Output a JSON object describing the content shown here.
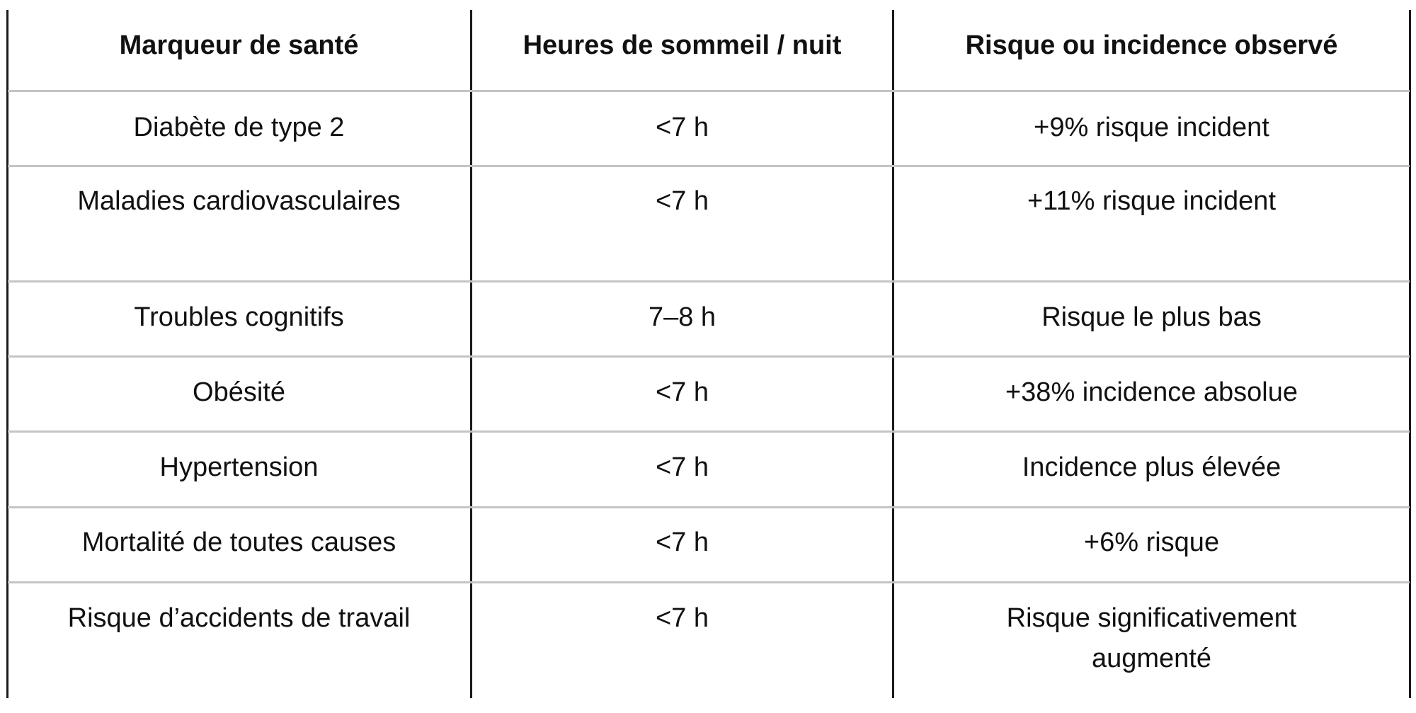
{
  "table": {
    "headers": [
      "Marqueur de santé",
      "Heures de sommeil / nuit",
      "Risque ou incidence observé"
    ],
    "rows": [
      [
        "Diabète de type 2",
        "<7 h",
        "+9% risque incident"
      ],
      [
        "Maladies cardiovasculaires",
        "<7 h",
        "+11% risque incident"
      ],
      [
        "Troubles cognitifs",
        "7–8 h",
        "Risque le plus bas"
      ],
      [
        "Obésité",
        "<7 h",
        "+38% incidence absolue"
      ],
      [
        "Hypertension",
        "<7 h",
        "Incidence plus élevée"
      ],
      [
        "Mortalité de toutes causes",
        "<7 h",
        "+6% risque"
      ],
      [
        "Risque d’accidents de travail",
        "<7 h",
        "Risque significativement augmenté"
      ]
    ]
  }
}
